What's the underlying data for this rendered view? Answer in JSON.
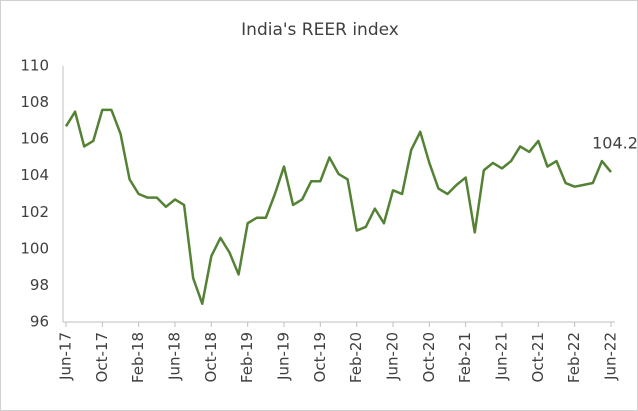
{
  "chart_data": {
    "type": "line",
    "title": "India's REER index",
    "categories": [
      "Jun-17",
      null,
      null,
      null,
      "Oct-17",
      null,
      null,
      null,
      "Feb-18",
      null,
      null,
      null,
      "Jun-18",
      null,
      null,
      null,
      "Oct-18",
      null,
      null,
      null,
      "Feb-19",
      null,
      null,
      null,
      "Jun-19",
      null,
      null,
      null,
      "Oct-19",
      null,
      null,
      null,
      "Feb-20",
      null,
      null,
      null,
      "Jun-20",
      null,
      null,
      null,
      "Oct-20",
      null,
      null,
      null,
      "Feb-21",
      null,
      null,
      null,
      "Jun-21",
      null,
      null,
      null,
      "Oct-21",
      null,
      null,
      null,
      "Feb-22",
      null,
      null,
      null,
      "Jun-22"
    ],
    "series": [
      {
        "name": "India's REER index",
        "color": "#548235",
        "values": [
          106.7,
          107.5,
          105.6,
          105.9,
          107.6,
          107.6,
          106.3,
          103.8,
          103.0,
          102.8,
          102.8,
          102.3,
          102.7,
          102.4,
          98.4,
          97.0,
          99.6,
          100.6,
          99.8,
          98.6,
          101.4,
          101.7,
          101.7,
          103.0,
          104.5,
          102.4,
          102.7,
          103.7,
          103.7,
          105.0,
          104.1,
          103.8,
          101.0,
          101.2,
          102.2,
          101.4,
          103.2,
          103.0,
          105.4,
          106.4,
          104.7,
          103.3,
          103.0,
          103.5,
          103.9,
          100.9,
          104.3,
          104.7,
          104.4,
          104.8,
          105.6,
          105.3,
          105.9,
          104.5,
          104.8,
          103.6,
          103.4,
          103.5,
          103.6,
          104.8,
          104.2
        ]
      }
    ],
    "ylim": [
      96,
      110
    ],
    "yticks": [
      96,
      98,
      100,
      102,
      104,
      106,
      108,
      110
    ],
    "grid": false,
    "data_labels": "last"
  }
}
